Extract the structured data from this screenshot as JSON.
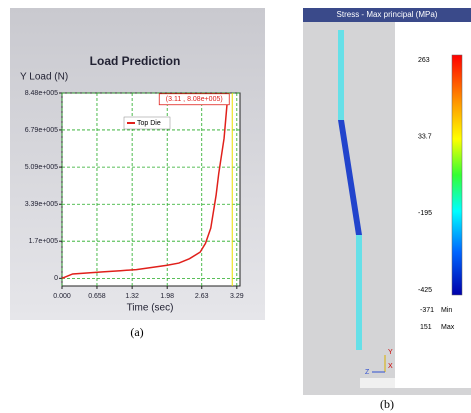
{
  "chart_data": {
    "type": "line",
    "title": "Load Prediction",
    "y_label": "Y Load (N)",
    "x_label": "Time (sec)",
    "x": [
      0,
      0.2,
      0.5,
      0.8,
      1.1,
      1.4,
      1.7,
      1.98,
      2.2,
      2.4,
      2.6,
      2.7,
      2.8,
      2.9,
      2.95,
      3.0,
      3.05,
      3.11
    ],
    "series": [
      {
        "name": "Top Die",
        "color": "#e0201b",
        "values": [
          0,
          20000,
          25000,
          30000,
          35000,
          40000,
          50000,
          60000,
          70000,
          90000,
          120000,
          160000,
          230000,
          380000,
          480000,
          560000,
          640000,
          808000
        ]
      }
    ],
    "xlim": [
      0,
      3.35
    ],
    "ylim": [
      -35000,
      848000
    ],
    "xticks": [
      {
        "value": 0,
        "label": "0.000"
      },
      0.658,
      1.32,
      1.98,
      2.63,
      3.29
    ],
    "yticks": [
      0,
      {
        "value": 170000,
        "label": "1.7e+005"
      },
      {
        "value": 339000,
        "label": "3.39e+005"
      },
      {
        "value": 509000,
        "label": "5.09e+005"
      },
      {
        "value": 679000,
        "label": "6.79e+005"
      },
      {
        "value": 848000,
        "label": "8.48e+005"
      }
    ],
    "grid": true,
    "legend": "upper left",
    "annotation": "(3.11 , 8.08e+005)"
  },
  "contour": {
    "title": "Stress - Max principal (MPa)",
    "scale_ticks": [
      263,
      33.7,
      -195,
      -425
    ],
    "min_label": "Min",
    "min": -371,
    "max_label": "Max",
    "max": 151,
    "axis_labels": [
      "Y",
      "Z",
      "X"
    ]
  },
  "captions": [
    "(a)",
    "(b)"
  ]
}
